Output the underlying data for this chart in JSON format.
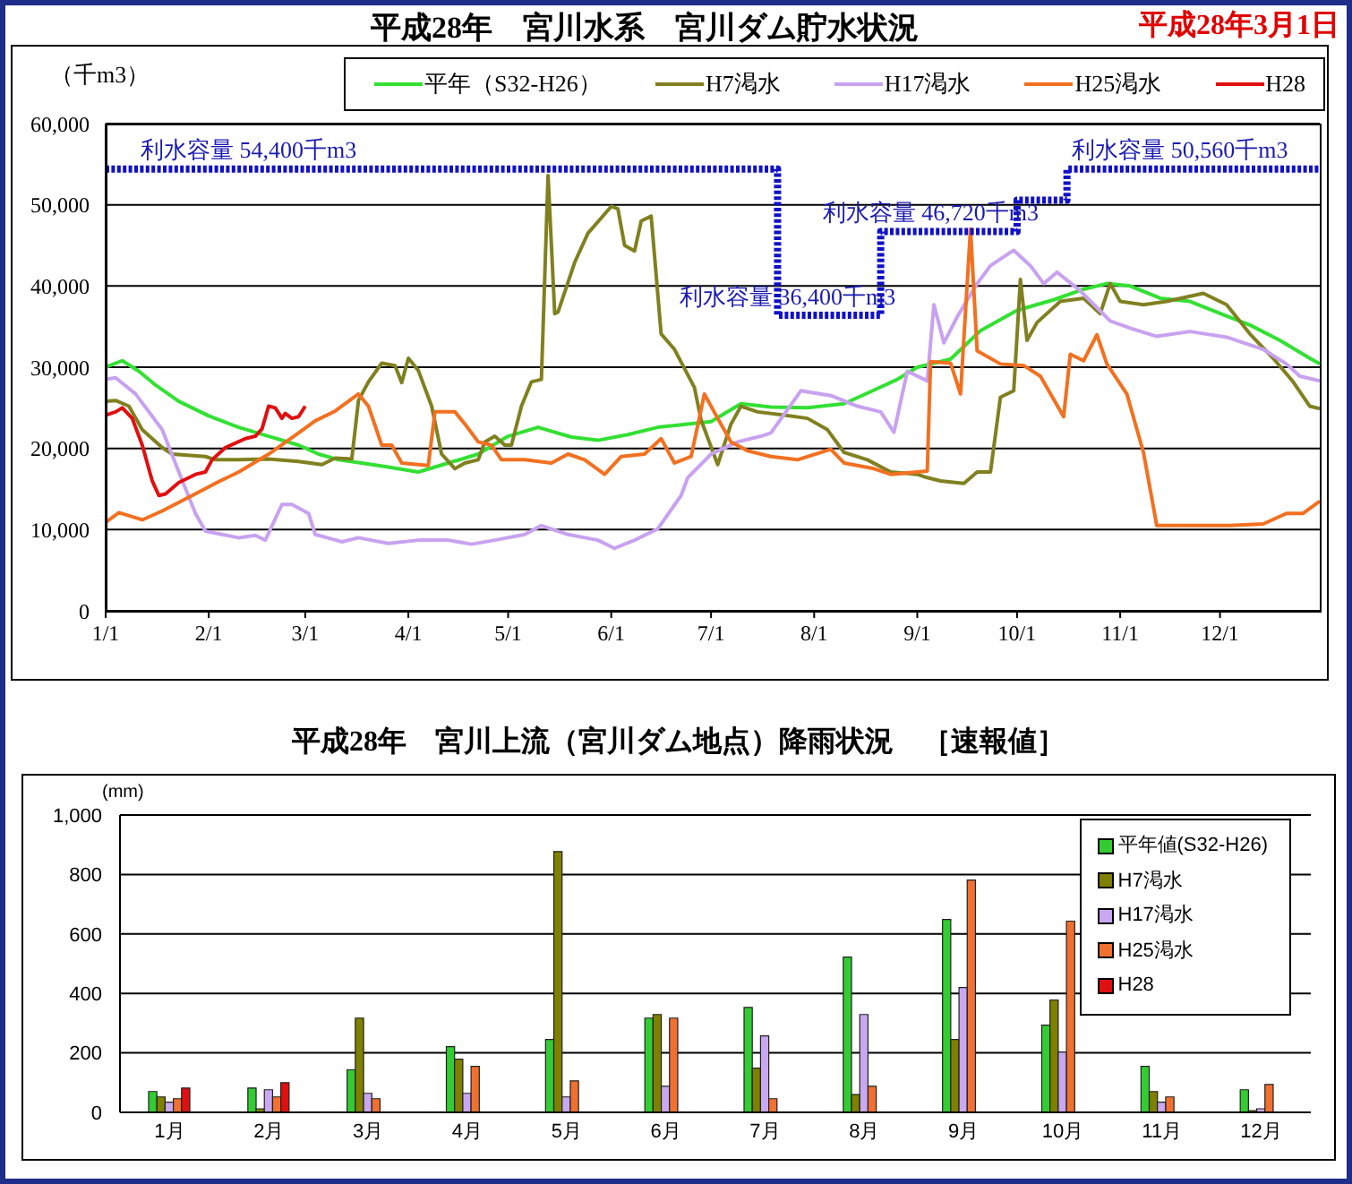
{
  "chart_data": [
    {
      "type": "line",
      "title": "平成28年　宮川水系　宮川ダム貯水状況",
      "subtitle": "平成28年3月1日",
      "ylabel": "（千m3）",
      "xlim": [
        "--01-01",
        "--12-31"
      ],
      "xticks": [
        {
          "value": "--01-01",
          "label": "1/1"
        },
        {
          "value": "--02-01",
          "label": "2/1"
        },
        {
          "value": "--03-01",
          "label": "3/1"
        },
        {
          "value": "--04-01",
          "label": "4/1"
        },
        {
          "value": "--05-01",
          "label": "5/1"
        },
        {
          "value": "--06-01",
          "label": "6/1"
        },
        {
          "value": "--07-01",
          "label": "7/1"
        },
        {
          "value": "--08-01",
          "label": "8/1"
        },
        {
          "value": "--09-01",
          "label": "9/1"
        },
        {
          "value": "--10-01",
          "label": "10/1"
        },
        {
          "value": "--11-01",
          "label": "11/1"
        },
        {
          "value": "--12-01",
          "label": "12/1"
        }
      ],
      "ylim": [
        0,
        60000
      ],
      "yticks": [
        0,
        {
          "value": 10000,
          "label": "10,000"
        },
        {
          "value": 20000,
          "label": "20,000"
        },
        {
          "value": 30000,
          "label": "30,000"
        },
        {
          "value": 40000,
          "label": "40,000"
        },
        {
          "value": 50000,
          "label": "50,000"
        },
        {
          "value": 60000,
          "label": "60,000"
        }
      ],
      "grid": "y",
      "legend": "top right",
      "series": [
        {
          "name": "平年（S32-H26）",
          "color": "#33e033",
          "x": [
            "--01-01",
            "--01-06",
            "--01-11",
            "--01-16",
            "--01-23",
            "--02-01",
            "--02-10",
            "--02-19",
            "--02-28",
            "--03-05",
            "--03-11",
            "--03-18",
            "--03-26",
            "--04-04",
            "--04-13",
            "--04-22",
            "--05-01",
            "--05-10",
            "--05-20",
            "--05-28",
            "--06-06",
            "--06-15",
            "--06-24",
            "--07-01",
            "--07-10",
            "--07-19",
            "--07-30",
            "--08-10",
            "--08-18",
            "--08-26",
            "--09-01",
            "--09-11",
            "--09-20",
            "--10-01",
            "--10-12",
            "--10-21",
            "--10-28",
            "--11-04",
            "--11-13",
            "--11-22",
            "--12-03",
            "--12-10",
            "--12-19",
            "--12-28",
            "--12-31"
          ],
          "values": [
            30000,
            30800,
            29500,
            27800,
            25800,
            24000,
            22600,
            21500,
            20400,
            19300,
            18600,
            18200,
            17700,
            17100,
            18200,
            19300,
            21500,
            22600,
            21400,
            21000,
            21700,
            22600,
            23000,
            23300,
            25500,
            25100,
            25000,
            25500,
            27000,
            28500,
            30000,
            31000,
            34500,
            37000,
            38300,
            39600,
            40300,
            40000,
            38500,
            38100,
            36300,
            35200,
            33300,
            31100,
            30400
          ]
        },
        {
          "name": "H7渇水",
          "color": "#808020",
          "x": [
            "--01-01",
            "--01-04",
            "--01-08",
            "--01-12",
            "--01-18",
            "--01-21",
            "--01-31",
            "--02-03",
            "--02-10",
            "--02-19",
            "--02-28",
            "--03-06",
            "--03-10",
            "--03-15",
            "--03-17",
            "--03-20",
            "--03-24",
            "--03-28",
            "--03-30",
            "--04-01",
            "--04-04",
            "--04-08",
            "--04-11",
            "--04-15",
            "--04-18",
            "--04-22",
            "--04-24",
            "--04-27",
            "--04-30",
            "--05-02",
            "--05-05",
            "--05-08",
            "--05-11",
            "--05-13",
            "--05-15",
            "--05-16",
            "--05-21",
            "--05-25",
            "--06-01",
            "--06-03",
            "--06-05",
            "--06-08",
            "--06-10",
            "--06-13",
            "--06-16",
            "--06-20",
            "--06-26",
            "--06-28",
            "--07-03",
            "--07-07",
            "--07-10",
            "--07-15",
            "--07-23",
            "--07-30",
            "--08-05",
            "--08-10",
            "--08-17",
            "--08-24",
            "--09-01",
            "--09-04",
            "--09-08",
            "--09-15",
            "--09-19",
            "--09-23",
            "--09-26",
            "--09-30",
            "--10-02",
            "--10-04",
            "--10-07",
            "--10-14",
            "--10-21",
            "--10-26",
            "--10-29",
            "--11-01",
            "--11-08",
            "--11-15",
            "--11-26",
            "--12-03",
            "--12-10",
            "--12-17",
            "--12-23",
            "--12-28",
            "--12-31"
          ],
          "values": [
            25800,
            25900,
            25200,
            22300,
            20100,
            19300,
            19000,
            18600,
            18600,
            18700,
            18400,
            18000,
            18800,
            18700,
            25900,
            28200,
            30500,
            30200,
            28100,
            31100,
            29600,
            25200,
            19300,
            17500,
            18200,
            18600,
            20800,
            21500,
            20400,
            20400,
            25200,
            28200,
            28500,
            53600,
            36600,
            36800,
            42900,
            46500,
            49800,
            49500,
            45000,
            44300,
            48000,
            48600,
            34100,
            32200,
            27500,
            23500,
            18000,
            23000,
            25200,
            24500,
            24100,
            23700,
            22300,
            19500,
            18600,
            17100,
            16800,
            16400,
            16000,
            15700,
            17100,
            17100,
            26300,
            27100,
            40800,
            33300,
            35500,
            38100,
            38500,
            36600,
            40300,
            38100,
            37700,
            38100,
            39100,
            37700,
            34100,
            31100,
            28200,
            25200,
            24900
          ]
        },
        {
          "name": "H17渇水",
          "color": "#c8a2f0",
          "x": [
            "--01-01",
            "--01-04",
            "--01-10",
            "--01-18",
            "--01-23",
            "--01-28",
            "--01-31",
            "--02-05",
            "--02-10",
            "--02-15",
            "--02-18",
            "--02-23",
            "--02-26",
            "--03-02",
            "--03-04",
            "--03-12",
            "--03-17",
            "--03-26",
            "--04-04",
            "--04-13",
            "--04-20",
            "--04-27",
            "--05-06",
            "--05-11",
            "--05-19",
            "--05-28",
            "--06-02",
            "--06-08",
            "--06-15",
            "--06-22",
            "--06-24",
            "--07-01",
            "--07-09",
            "--07-16",
            "--07-19",
            "--07-28",
            "--08-06",
            "--08-14",
            "--08-21",
            "--08-25",
            "--08-29",
            "--09-04",
            "--09-06",
            "--09-09",
            "--09-13",
            "--09-19",
            "--09-23",
            "--09-30",
            "--10-05",
            "--10-09",
            "--10-13",
            "--10-20",
            "--10-29",
            "--11-04",
            "--11-12",
            "--11-22",
            "--12-03",
            "--12-14",
            "--12-21",
            "--12-25",
            "--12-31"
          ],
          "values": [
            28500,
            28700,
            26700,
            22300,
            17100,
            12000,
            9800,
            9400,
            9000,
            9300,
            8700,
            13100,
            13100,
            12000,
            9400,
            8500,
            9000,
            8300,
            8700,
            8700,
            8200,
            8700,
            9400,
            10500,
            9400,
            8700,
            7700,
            8700,
            10100,
            14200,
            16400,
            19300,
            20800,
            21500,
            21900,
            27100,
            26500,
            25200,
            24500,
            22000,
            29500,
            28300,
            37700,
            33000,
            36200,
            40300,
            42500,
            44400,
            42500,
            40300,
            41700,
            39400,
            35700,
            34800,
            33800,
            34400,
            33700,
            32200,
            30400,
            28900,
            28300
          ]
        },
        {
          "name": "H25渇水",
          "color": "#f27020",
          "x": [
            "--01-01",
            "--01-05",
            "--01-12",
            "--01-18",
            "--01-27",
            "--02-03",
            "--02-10",
            "--02-19",
            "--02-28",
            "--03-04",
            "--03-10",
            "--03-17",
            "--03-20",
            "--03-24",
            "--03-27",
            "--03-30",
            "--04-04",
            "--04-07",
            "--04-09",
            "--04-15",
            "--04-18",
            "--04-22",
            "--04-26",
            "--04-29",
            "--05-06",
            "--05-14",
            "--05-19",
            "--05-24",
            "--05-30",
            "--06-04",
            "--06-11",
            "--06-16",
            "--06-20",
            "--06-25",
            "--06-29",
            "--07-03",
            "--07-07",
            "--07-12",
            "--07-19",
            "--07-27",
            "--08-06",
            "--08-10",
            "--08-19",
            "--08-24",
            "--09-04",
            "--09-05",
            "--09-11",
            "--09-14",
            "--09-17",
            "--09-19",
            "--09-26",
            "--10-03",
            "--10-08",
            "--10-15",
            "--10-17",
            "--10-21",
            "--10-25",
            "--10-28",
            "--11-03",
            "--11-08",
            "--11-12",
            "--11-22",
            "--12-04",
            "--12-14",
            "--12-21",
            "--12-26",
            "--12-31"
          ],
          "values": [
            10900,
            12100,
            11200,
            12300,
            14200,
            15700,
            17100,
            19300,
            21900,
            23400,
            24600,
            26700,
            25200,
            20400,
            20400,
            18200,
            18000,
            17900,
            24500,
            24500,
            23000,
            20800,
            20400,
            18600,
            18600,
            18200,
            19300,
            18600,
            16800,
            19000,
            19300,
            21200,
            18200,
            19000,
            26700,
            23700,
            20800,
            19700,
            19000,
            18600,
            19900,
            18200,
            17500,
            16800,
            17200,
            30700,
            30500,
            26700,
            47000,
            32000,
            30400,
            30200,
            28900,
            23900,
            31600,
            30800,
            34000,
            30400,
            26700,
            19500,
            10500,
            10500,
            10500,
            10700,
            12000,
            12000,
            13500
          ]
        },
        {
          "name": "H28",
          "color": "#e01010",
          "x": [
            "--01-01",
            "--01-04",
            "--01-06",
            "--01-09",
            "--01-12",
            "--01-15",
            "--01-17",
            "--01-19",
            "--01-23",
            "--01-28",
            "--01-31",
            "--02-02",
            "--02-06",
            "--02-12",
            "--02-15",
            "--02-17",
            "--02-19",
            "--02-21",
            "--02-23",
            "--02-24",
            "--02-26",
            "--02-28",
            "--03-01"
          ],
          "values": [
            24100,
            24500,
            25000,
            23700,
            20400,
            16000,
            14200,
            14400,
            15800,
            16800,
            17100,
            18600,
            20100,
            21200,
            21500,
            22400,
            25200,
            25000,
            23700,
            24300,
            23700,
            23900,
            25200
          ]
        },
        {
          "type": "step",
          "color": "#1010c8",
          "line_style": "dotted",
          "x": [
            "--01-01",
            "--07-21",
            "--08-21",
            "--10-01",
            "--10-16",
            "--12-31"
          ],
          "values": [
            54400,
            36400,
            46720,
            50560,
            54400,
            54400
          ]
        }
      ],
      "annotations": [
        {
          "text": "利水容量 54,400千m3",
          "x": "--02-13",
          "y": 54400
        },
        {
          "text": "利水容量 36,400千m3",
          "x": "--07-24",
          "y": 36400
        },
        {
          "text": "利水容量 46,720千m3",
          "x": "--09-05",
          "y": 46720
        },
        {
          "text": "利水容量 50,560千m3",
          "x": "--11-19",
          "y": 54400
        }
      ]
    },
    {
      "type": "bar",
      "title": "平成28年　宮川上流（宮川ダム地点）降雨状況　［速報値］",
      "ylabel": "(mm)",
      "categories": [
        "1月",
        "2月",
        "3月",
        "4月",
        "5月",
        "6月",
        "7月",
        "8月",
        "9月",
        "10月",
        "11月",
        "12月"
      ],
      "ylim": [
        0,
        1000
      ],
      "yticks": [
        0,
        200,
        400,
        600,
        800,
        {
          "value": 1000,
          "label": "1,000"
        }
      ],
      "grid": "y",
      "legend": "top right",
      "series": [
        {
          "name": "平年値(S32-H26)",
          "color": "#33cc33",
          "values": [
            70,
            82,
            143,
            221,
            245,
            317,
            353,
            522,
            649,
            293,
            155,
            76
          ]
        },
        {
          "name": "H7渇水",
          "color": "#808000",
          "values": [
            52,
            12,
            317,
            179,
            877,
            329,
            149,
            60,
            245,
            378,
            70,
            6
          ]
        },
        {
          "name": "H17渇水",
          "color": "#c8a8f0",
          "values": [
            34,
            76,
            64,
            64,
            52,
            88,
            257,
            329,
            420,
            203,
            34,
            12
          ]
        },
        {
          "name": "H25渇水",
          "color": "#f07030",
          "values": [
            46,
            52,
            46,
            155,
            106,
            317,
            46,
            88,
            781,
            643,
            52,
            94
          ]
        },
        {
          "name": "H28",
          "color": "#e01010",
          "values": [
            82,
            100,
            null,
            null,
            null,
            null,
            null,
            null,
            null,
            null,
            null,
            null
          ]
        }
      ]
    }
  ]
}
